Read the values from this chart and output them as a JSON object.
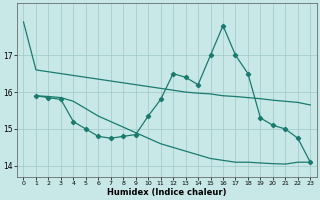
{
  "xlabel": "Humidex (Indice chaleur)",
  "color": "#1a7a6e",
  "bg_color": "#c8e8e8",
  "grid_color": "#a0c8c8",
  "ylim": [
    13.7,
    18.4
  ],
  "yticks": [
    14,
    15,
    16,
    17
  ],
  "xlim": [
    -0.5,
    23.5
  ],
  "xticks": [
    0,
    1,
    2,
    3,
    4,
    5,
    6,
    7,
    8,
    9,
    10,
    11,
    12,
    13,
    14,
    15,
    16,
    17,
    18,
    19,
    20,
    21,
    22,
    23
  ],
  "line1_x": [
    0,
    1,
    2,
    3,
    4,
    5,
    6,
    7,
    8,
    9,
    10,
    11,
    12,
    13,
    14,
    15,
    16,
    17,
    18,
    19,
    20,
    21,
    22,
    23
  ],
  "line1_y": [
    17.9,
    16.6,
    16.55,
    16.5,
    16.45,
    16.4,
    16.35,
    16.3,
    16.25,
    16.2,
    16.15,
    16.1,
    16.05,
    16.0,
    15.97,
    15.95,
    15.9,
    15.88,
    15.85,
    15.82,
    15.78,
    15.75,
    15.72,
    15.65
  ],
  "line2_x": [
    1,
    2,
    3,
    4,
    5,
    6,
    7,
    8,
    9,
    10,
    11,
    12,
    13,
    14,
    15,
    16,
    17,
    18,
    19,
    20,
    21,
    22,
    23
  ],
  "line2_y": [
    15.9,
    15.88,
    15.85,
    15.75,
    15.55,
    15.35,
    15.2,
    15.05,
    14.9,
    14.75,
    14.6,
    14.5,
    14.4,
    14.3,
    14.2,
    14.15,
    14.1,
    14.1,
    14.08,
    14.06,
    14.05,
    14.1,
    14.1
  ],
  "line3_x": [
    1,
    2,
    3,
    4,
    5,
    6,
    7,
    8,
    9,
    10,
    11,
    12,
    13,
    14,
    15,
    16,
    17,
    18,
    19,
    20,
    21,
    22,
    23
  ],
  "line3_y": [
    15.9,
    15.85,
    15.8,
    15.2,
    15.0,
    14.8,
    14.75,
    14.8,
    14.85,
    15.35,
    15.8,
    16.5,
    16.4,
    16.2,
    17.0,
    17.8,
    17.0,
    16.5,
    15.3,
    15.1,
    15.0,
    14.75,
    14.1
  ],
  "marker_x": [
    1,
    2,
    3,
    4,
    5,
    6,
    7,
    8,
    9,
    10,
    11,
    12,
    13,
    14,
    15,
    16,
    17,
    18,
    19,
    20,
    21,
    22,
    23
  ],
  "marker_y": [
    15.9,
    15.85,
    15.8,
    15.2,
    15.0,
    14.8,
    14.75,
    14.8,
    14.85,
    15.35,
    15.8,
    16.5,
    16.4,
    16.2,
    17.0,
    17.8,
    17.0,
    16.5,
    15.3,
    15.1,
    15.0,
    14.75,
    14.1
  ]
}
